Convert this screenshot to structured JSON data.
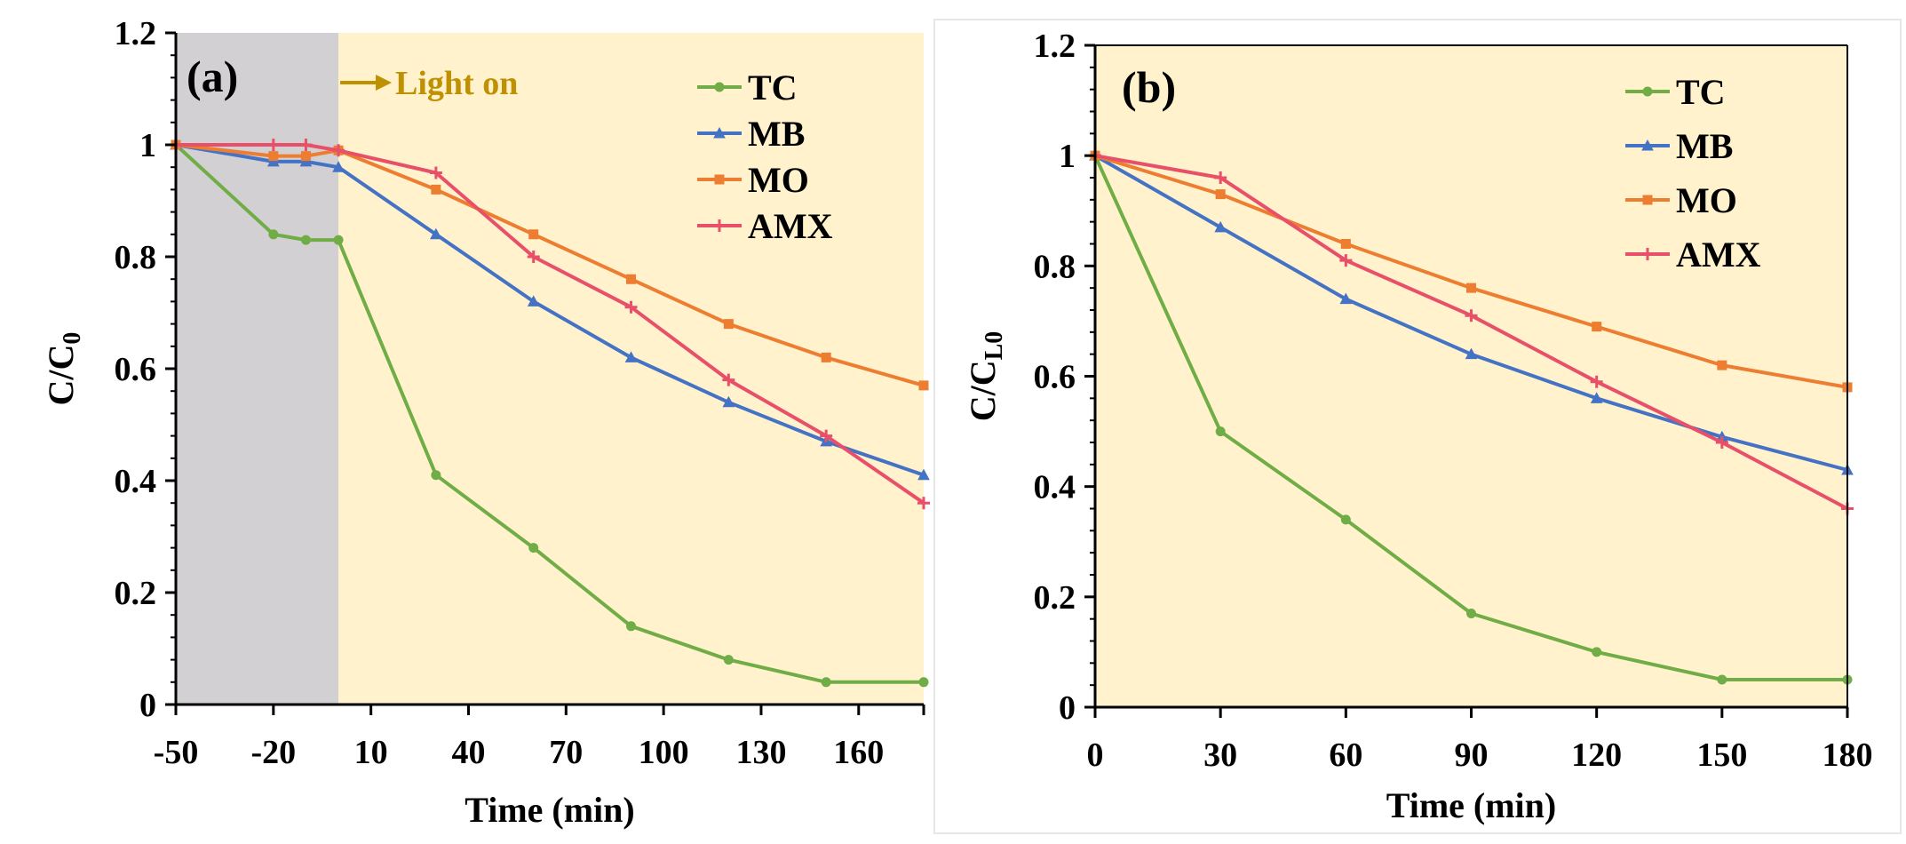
{
  "figure": {
    "colors": {
      "TC": "#70ad47",
      "MB": "#4472c4",
      "MO": "#ed7d31",
      "AMX": "#e8506a",
      "plot_bg": "#fff2cc",
      "dark_bg": "#d3d0d3",
      "light_on": "#bf9000"
    }
  },
  "chart_data": [
    {
      "type": "line",
      "panel_label": "(a)",
      "title": "",
      "xlabel": "Time (min)",
      "ylabel": "C/C",
      "ylabel_sub": "0",
      "x_ticks": [
        -50,
        -20,
        10,
        40,
        70,
        100,
        130,
        160
      ],
      "y_ticks": [
        "0",
        "0.2",
        "0.4",
        "0.6",
        "0.8",
        "1",
        "1.2"
      ],
      "xlim": [
        -50,
        180
      ],
      "ylim": [
        0,
        1.2
      ],
      "dark_region": [
        -50,
        0
      ],
      "annotation": "Light on",
      "legend_position": "top-right",
      "series": [
        {
          "name": "TC",
          "x": [
            -50,
            -20,
            -10,
            0,
            30,
            60,
            90,
            120,
            150,
            180
          ],
          "y": [
            1.0,
            0.84,
            0.83,
            0.83,
            0.41,
            0.28,
            0.14,
            0.08,
            0.04,
            0.04
          ]
        },
        {
          "name": "MB",
          "x": [
            -50,
            -20,
            -10,
            0,
            30,
            60,
            90,
            120,
            150,
            180
          ],
          "y": [
            1.0,
            0.97,
            0.97,
            0.96,
            0.84,
            0.72,
            0.62,
            0.54,
            0.47,
            0.41
          ]
        },
        {
          "name": "MO",
          "x": [
            -50,
            -20,
            -10,
            0,
            30,
            60,
            90,
            120,
            150,
            180
          ],
          "y": [
            1.0,
            0.98,
            0.98,
            0.99,
            0.92,
            0.84,
            0.76,
            0.68,
            0.62,
            0.57
          ]
        },
        {
          "name": "AMX",
          "x": [
            -50,
            -20,
            -10,
            0,
            30,
            60,
            90,
            120,
            150,
            180
          ],
          "y": [
            1.0,
            1.0,
            1.0,
            0.99,
            0.95,
            0.8,
            0.71,
            0.58,
            0.48,
            0.36
          ]
        }
      ]
    },
    {
      "type": "line",
      "panel_label": "(b)",
      "title": "",
      "xlabel": "Time (min)",
      "ylabel": "C/C",
      "ylabel_sub": "L0",
      "x_ticks": [
        0,
        30,
        60,
        90,
        120,
        150,
        180
      ],
      "y_ticks": [
        "0",
        "0.2",
        "0.4",
        "0.6",
        "0.8",
        "1",
        "1.2"
      ],
      "xlim": [
        0,
        180
      ],
      "ylim": [
        0,
        1.2
      ],
      "legend_position": "top-right",
      "series": [
        {
          "name": "TC",
          "x": [
            0,
            30,
            60,
            90,
            120,
            150,
            180
          ],
          "y": [
            1.0,
            0.5,
            0.34,
            0.17,
            0.1,
            0.05,
            0.05
          ]
        },
        {
          "name": "MB",
          "x": [
            0,
            30,
            60,
            90,
            120,
            150,
            180
          ],
          "y": [
            1.0,
            0.87,
            0.74,
            0.64,
            0.56,
            0.49,
            0.43
          ]
        },
        {
          "name": "MO",
          "x": [
            0,
            30,
            60,
            90,
            120,
            150,
            180
          ],
          "y": [
            1.0,
            0.93,
            0.84,
            0.76,
            0.69,
            0.62,
            0.58
          ]
        },
        {
          "name": "AMX",
          "x": [
            0,
            30,
            60,
            90,
            120,
            150,
            180
          ],
          "y": [
            1.0,
            0.96,
            0.81,
            0.71,
            0.59,
            0.48,
            0.36
          ]
        }
      ]
    }
  ]
}
